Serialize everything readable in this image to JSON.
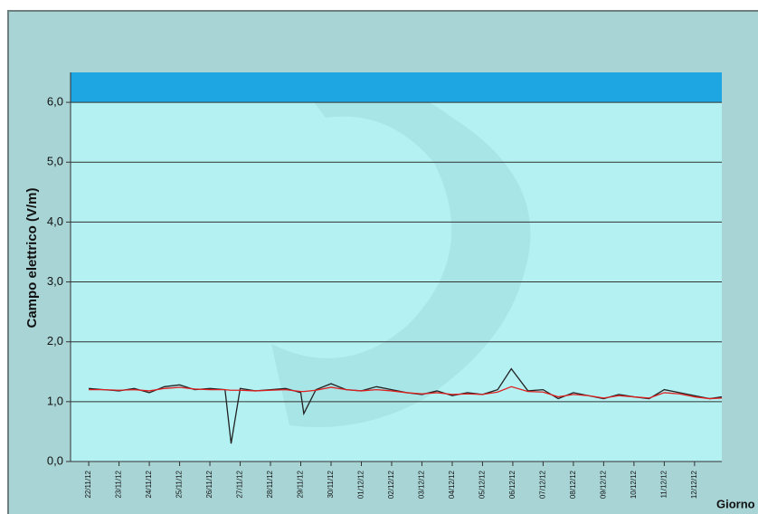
{
  "chart_data": {
    "type": "line",
    "y_label": "Campo elettrico (V/m)",
    "x_label": "Giorno",
    "ylim": [
      0,
      6.5
    ],
    "yticks": [
      {
        "value": 0,
        "label": "0,0"
      },
      {
        "value": 1,
        "label": "1,0"
      },
      {
        "value": 2,
        "label": "2,0"
      },
      {
        "value": 3,
        "label": "3,0"
      },
      {
        "value": 4,
        "label": "4,0"
      },
      {
        "value": 5,
        "label": "5,0"
      },
      {
        "value": 6,
        "label": "6,0"
      }
    ],
    "xlim": [
      -0.6,
      20.9
    ],
    "xticks": [
      {
        "value": 0,
        "label": "22/11/12"
      },
      {
        "value": 1,
        "label": "23/11/12"
      },
      {
        "value": 2,
        "label": "24/11/12"
      },
      {
        "value": 3,
        "label": "25/11/12"
      },
      {
        "value": 4,
        "label": "26/11/12"
      },
      {
        "value": 5,
        "label": "27/11/12"
      },
      {
        "value": 6,
        "label": "28/11/12"
      },
      {
        "value": 7,
        "label": "29/11/12"
      },
      {
        "value": 8,
        "label": "30/11/12"
      },
      {
        "value": 9,
        "label": "01/12/12"
      },
      {
        "value": 10,
        "label": "02/12/12"
      },
      {
        "value": 11,
        "label": "03/12/12"
      },
      {
        "value": 12,
        "label": "04/12/12"
      },
      {
        "value": 13,
        "label": "05/12/12"
      },
      {
        "value": 14,
        "label": "06/12/12"
      },
      {
        "value": 15,
        "label": "07/12/12"
      },
      {
        "value": 16,
        "label": "08/12/12"
      },
      {
        "value": 17,
        "label": "09/12/12"
      },
      {
        "value": 18,
        "label": "10/12/12"
      },
      {
        "value": 19,
        "label": "11/12/12"
      },
      {
        "value": 20,
        "label": "12/12/12"
      }
    ],
    "grid": true,
    "bands": [
      {
        "from": 6,
        "to": 6.5,
        "color": "#1ea6e2"
      }
    ],
    "x": [
      0,
      0.5,
      1,
      1.5,
      2,
      2.5,
      3,
      3.5,
      4,
      4.5,
      4.7,
      5,
      5.5,
      6,
      6.5,
      7,
      7.1,
      7.5,
      8,
      8.5,
      9,
      9.5,
      10,
      10.5,
      11,
      11.5,
      12,
      12.5,
      13,
      13.5,
      13.95,
      14.5,
      15,
      15.5,
      16,
      16.5,
      17,
      17.5,
      18,
      18.5,
      19,
      19.5,
      20,
      20.5,
      20.9
    ],
    "series": [
      {
        "color": "#222222",
        "values": [
          1.22,
          1.2,
          1.18,
          1.22,
          1.15,
          1.25,
          1.28,
          1.2,
          1.22,
          1.2,
          0.3,
          1.22,
          1.18,
          1.2,
          1.22,
          1.15,
          0.8,
          1.2,
          1.3,
          1.2,
          1.18,
          1.25,
          1.2,
          1.15,
          1.12,
          1.18,
          1.1,
          1.15,
          1.12,
          1.2,
          1.55,
          1.18,
          1.2,
          1.05,
          1.15,
          1.1,
          1.05,
          1.12,
          1.08,
          1.05,
          1.2,
          1.15,
          1.1,
          1.05,
          1.08
        ]
      },
      {
        "color": "#e02020",
        "values": [
          1.2,
          1.2,
          1.19,
          1.2,
          1.18,
          1.22,
          1.24,
          1.21,
          1.2,
          1.2,
          1.19,
          1.19,
          1.18,
          1.19,
          1.2,
          1.17,
          1.17,
          1.19,
          1.24,
          1.2,
          1.18,
          1.2,
          1.18,
          1.15,
          1.13,
          1.15,
          1.12,
          1.13,
          1.12,
          1.16,
          1.25,
          1.17,
          1.16,
          1.08,
          1.12,
          1.1,
          1.06,
          1.1,
          1.08,
          1.06,
          1.15,
          1.13,
          1.08,
          1.05,
          1.06
        ]
      }
    ]
  }
}
